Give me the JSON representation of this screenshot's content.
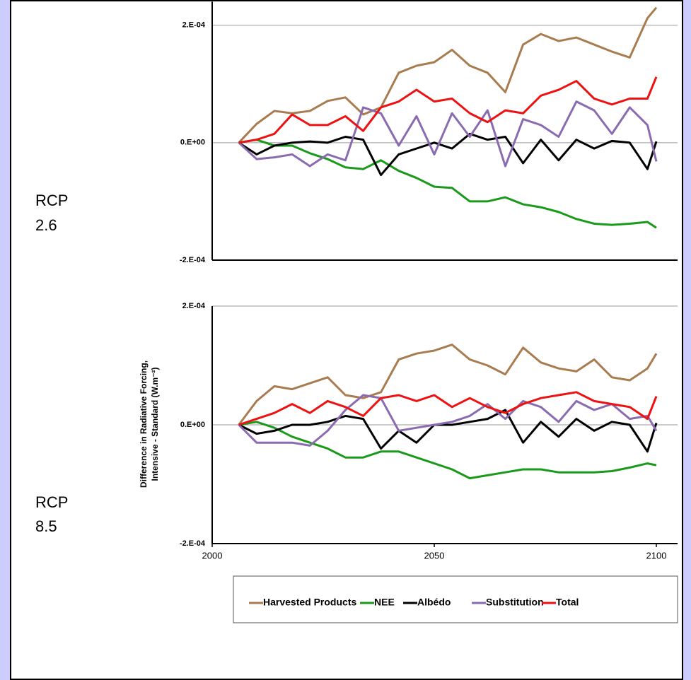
{
  "chart_data": [
    {
      "type": "line",
      "annotation": "RCP 2.6",
      "x": [
        2006,
        2010,
        2014,
        2018,
        2022,
        2026,
        2030,
        2034,
        2038,
        2042,
        2046,
        2050,
        2054,
        2058,
        2062,
        2066,
        2070,
        2074,
        2078,
        2082,
        2086,
        2090,
        2094,
        2098,
        2100
      ],
      "xlim": [
        2000,
        2105
      ],
      "ylim": [
        -0.0002,
        0.00024
      ],
      "yticks": [
        {
          "value": -0.0002,
          "label": "-2.E-04"
        },
        {
          "value": 0,
          "label": "0.E+00"
        },
        {
          "value": 0.0002,
          "label": "2.E-04"
        }
      ],
      "grid": true,
      "series": [
        {
          "color": "#a97c50",
          "values": [
            0,
            3.2e-05,
            5.4e-05,
            5e-05,
            5.4e-05,
            7.1e-05,
            7.7e-05,
            4.8e-05,
            6e-05,
            0.000119,
            0.000131,
            0.000137,
            0.000158,
            0.000131,
            0.000119,
            8.6e-05,
            0.000167,
            0.000185,
            0.000173,
            0.000179,
            0.000167,
            0.000155,
            0.000145,
            0.000212,
            0.00023
          ]
        },
        {
          "color": "#1a9a1a",
          "values": [
            0,
            5e-06,
            -5e-06,
            -5e-06,
            -1.8e-05,
            -2.8e-05,
            -4.2e-05,
            -4.5e-05,
            -3e-05,
            -4.8e-05,
            -6e-05,
            -7.5e-05,
            -7.7e-05,
            -0.0001,
            -0.0001,
            -9.3e-05,
            -0.000105,
            -0.00011,
            -0.000118,
            -0.00013,
            -0.000138,
            -0.00014,
            -0.000138,
            -0.000135,
            -0.000145
          ]
        },
        {
          "color": "#000000",
          "values": [
            0,
            -2e-05,
            -5e-06,
            0,
            2e-06,
            0,
            1e-05,
            5e-06,
            -5.5e-05,
            -2e-05,
            -1e-05,
            0,
            -1e-05,
            1.5e-05,
            5e-06,
            1e-05,
            -3.5e-05,
            5e-06,
            -3e-05,
            5e-06,
            -1e-05,
            3e-06,
            0,
            -4.5e-05,
            2e-06
          ]
        },
        {
          "color": "#8b6bb0",
          "values": [
            0,
            -2.8e-05,
            -2.5e-05,
            -2e-05,
            -4e-05,
            -2e-05,
            -3e-05,
            6e-05,
            5e-05,
            -5e-06,
            4.5e-05,
            -2e-05,
            5e-05,
            1e-05,
            5.5e-05,
            -4e-05,
            4e-05,
            3e-05,
            1e-05,
            7e-05,
            5.5e-05,
            1.5e-05,
            6e-05,
            3e-05,
            -3.2e-05
          ]
        },
        {
          "color": "#ee1111",
          "values": [
            0,
            5e-06,
            1.5e-05,
            4.8e-05,
            3e-05,
            3e-05,
            4.5e-05,
            2e-05,
            6e-05,
            7e-05,
            9e-05,
            7e-05,
            7.5e-05,
            5e-05,
            3.5e-05,
            5.5e-05,
            5e-05,
            8e-05,
            9e-05,
            0.000105,
            7.5e-05,
            6.5e-05,
            7.5e-05,
            7.5e-05,
            0.000112
          ]
        }
      ]
    },
    {
      "type": "line",
      "annotation": "RCP 8.5",
      "ylabel": [
        "Difference in Radiative Forcing,",
        "Intensive - Standard (W.m⁻²)"
      ],
      "x": [
        2006,
        2010,
        2014,
        2018,
        2022,
        2026,
        2030,
        2034,
        2038,
        2042,
        2046,
        2050,
        2054,
        2058,
        2062,
        2066,
        2070,
        2074,
        2078,
        2082,
        2086,
        2090,
        2094,
        2098,
        2100
      ],
      "xlim": [
        2000,
        2105
      ],
      "xticks": [
        2000,
        2050,
        2100
      ],
      "ylim": [
        -0.0002,
        0.0002
      ],
      "yticks": [
        {
          "value": -0.0002,
          "label": "-2.E-04"
        },
        {
          "value": 0,
          "label": "0.E+00"
        },
        {
          "value": 0.0002,
          "label": "2.E-04"
        }
      ],
      "grid": true,
      "series": [
        {
          "name": "Harvested Products",
          "color": "#a97c50",
          "values": [
            0,
            4e-05,
            6.5e-05,
            6e-05,
            7e-05,
            8e-05,
            5e-05,
            4.5e-05,
            5.5e-05,
            0.00011,
            0.00012,
            0.000125,
            0.000135,
            0.00011,
            0.0001,
            8.5e-05,
            0.00013,
            0.000105,
            9.5e-05,
            9e-05,
            0.00011,
            8e-05,
            7.5e-05,
            9.5e-05,
            0.00012
          ]
        },
        {
          "name": "NEE",
          "color": "#1a9a1a",
          "values": [
            0,
            5e-06,
            -5e-06,
            -2e-05,
            -3e-05,
            -4e-05,
            -5.5e-05,
            -5.5e-05,
            -4.5e-05,
            -4.5e-05,
            -5.5e-05,
            -6.5e-05,
            -7.5e-05,
            -9e-05,
            -8.5e-05,
            -8e-05,
            -7.5e-05,
            -7.5e-05,
            -8e-05,
            -8e-05,
            -8e-05,
            -7.8e-05,
            -7.2e-05,
            -6.5e-05,
            -6.8e-05
          ]
        },
        {
          "name": "Albédo",
          "color": "#000000",
          "values": [
            0,
            -1.5e-05,
            -1e-05,
            0,
            0,
            5e-06,
            1.5e-05,
            1e-05,
            -4e-05,
            -1e-05,
            -3e-05,
            0,
            0,
            5e-06,
            1e-05,
            2.5e-05,
            -3e-05,
            5e-06,
            -2e-05,
            1e-05,
            -1e-05,
            5e-06,
            0,
            -4.5e-05,
            3e-06
          ]
        },
        {
          "name": "Substitution",
          "color": "#8b6bb0",
          "values": [
            0,
            -3e-05,
            -3e-05,
            -3e-05,
            -3.5e-05,
            -1e-05,
            2.5e-05,
            5e-05,
            4.5e-05,
            -1e-05,
            -5e-06,
            0,
            5e-06,
            1.5e-05,
            3.5e-05,
            1e-05,
            4e-05,
            3e-05,
            5e-06,
            4e-05,
            2.5e-05,
            3.5e-05,
            1e-05,
            1.5e-05,
            -1e-05
          ]
        },
        {
          "name": "Total",
          "color": "#ee1111",
          "values": [
            0,
            1e-05,
            2e-05,
            3.5e-05,
            2e-05,
            4e-05,
            3e-05,
            1.5e-05,
            4.5e-05,
            5e-05,
            4e-05,
            5e-05,
            3e-05,
            4.5e-05,
            3e-05,
            2e-05,
            3.5e-05,
            4.5e-05,
            5e-05,
            5.5e-05,
            4e-05,
            3.5e-05,
            3e-05,
            1e-05,
            4.8e-05
          ]
        }
      ]
    }
  ]
}
